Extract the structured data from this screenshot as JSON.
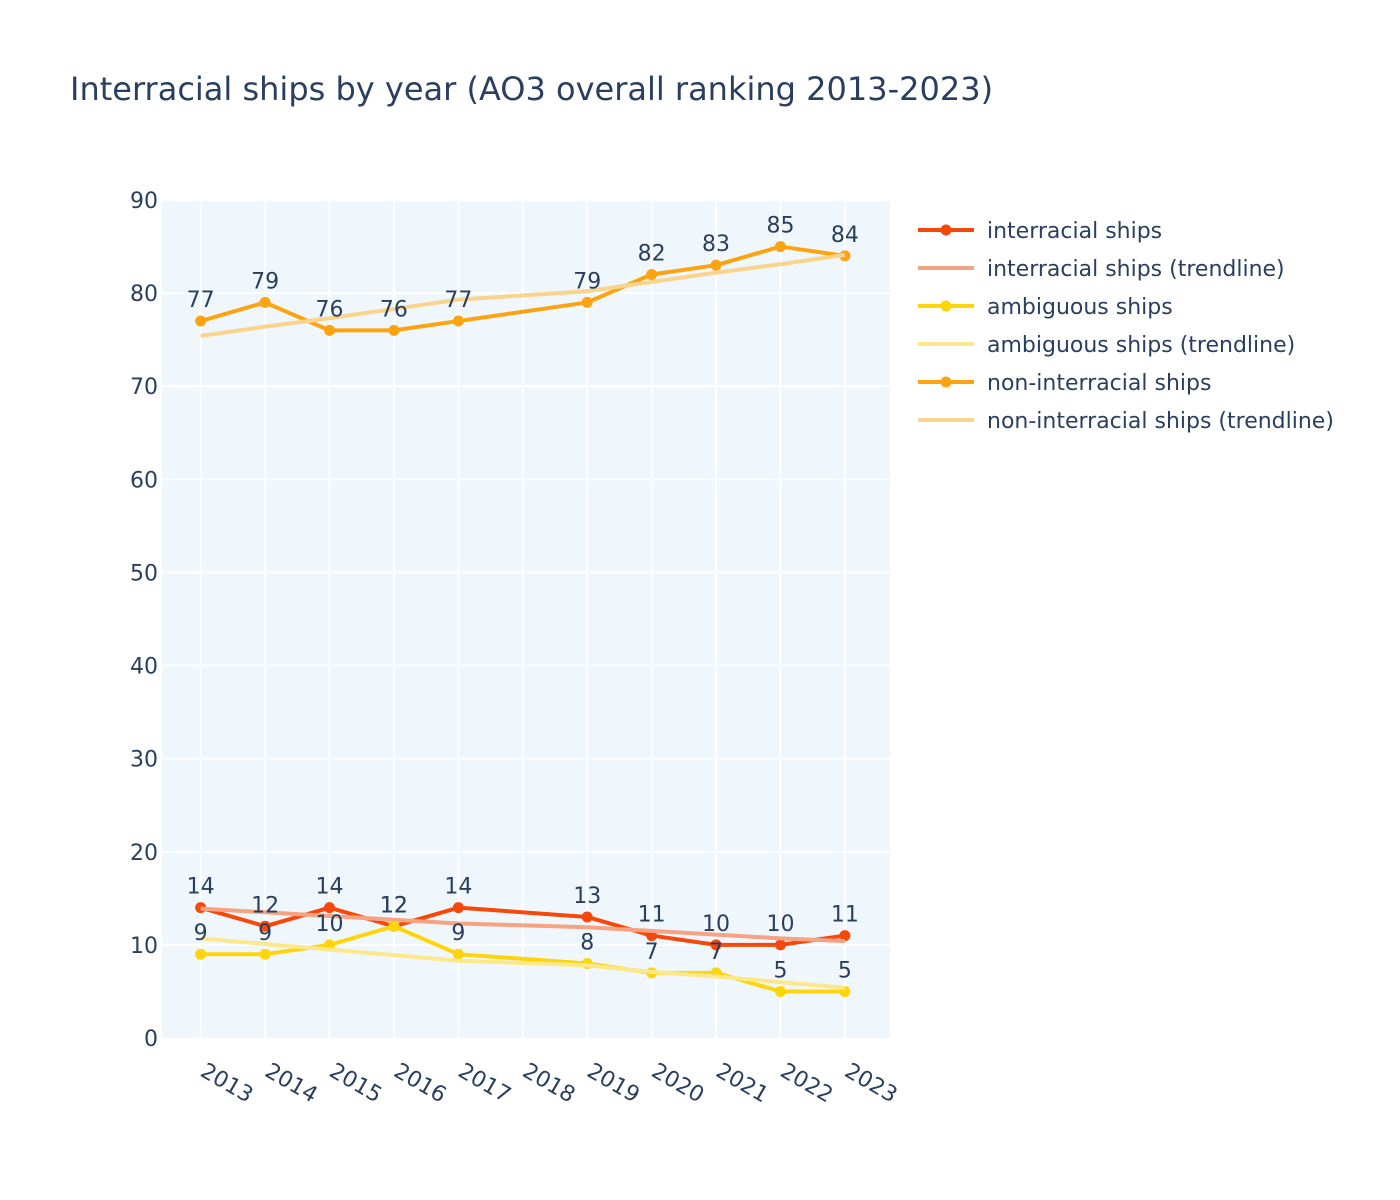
{
  "chart_data": {
    "type": "line",
    "title": "Interracial ships by year (AO3 overall ranking 2013-2023)",
    "x": [
      2013,
      2014,
      2015,
      2016,
      2017,
      2019,
      2020,
      2021,
      2022,
      2023
    ],
    "x_ticks": [
      "2013",
      "2014",
      "2015",
      "2016",
      "2017",
      "2018",
      "2019",
      "2020",
      "2021",
      "2022",
      "2023"
    ],
    "y_ticks": [
      "0",
      "10",
      "20",
      "30",
      "40",
      "50",
      "60",
      "70",
      "80",
      "90"
    ],
    "xlim": [
      2012.4,
      2023.7
    ],
    "ylim": [
      0,
      90
    ],
    "grid": true,
    "legend_position": "right",
    "plot_background": "#eff7fd",
    "series": [
      {
        "name": "interracial ships",
        "color": "#f7480b",
        "mode": "lines+markers+text",
        "values": [
          14,
          12,
          14,
          12,
          14,
          13,
          11,
          10,
          10,
          11
        ],
        "labels": [
          "14",
          "12",
          "14",
          "12",
          "14",
          "13",
          "11",
          "10",
          "10",
          "11"
        ]
      },
      {
        "name": "interracial ships (trendline)",
        "color": "#f6a384",
        "mode": "lines",
        "values": [
          13.9,
          13.5,
          13.1,
          12.7,
          12.3,
          11.9,
          11.5,
          11.1,
          10.7,
          10.4
        ]
      },
      {
        "name": "ambiguous ships",
        "color": "#fdd50a",
        "mode": "lines+markers+text",
        "values": [
          9,
          9,
          10,
          12,
          9,
          8,
          7,
          7,
          5,
          5
        ],
        "labels": [
          "9",
          "9",
          "10",
          "12",
          "9",
          "8",
          "7",
          "7",
          "5",
          "5"
        ]
      },
      {
        "name": "ambiguous ships (trendline)",
        "color": "#fce88b",
        "mode": "lines",
        "values": [
          10.7,
          10.1,
          9.5,
          8.9,
          8.3,
          7.8,
          7.1,
          6.6,
          6.0,
          5.4
        ]
      },
      {
        "name": "non-interracial ships",
        "color": "#fca311",
        "mode": "lines+markers+text",
        "values": [
          77,
          79,
          76,
          76,
          77,
          79,
          82,
          83,
          85,
          84
        ],
        "labels": [
          "77",
          "79",
          "76",
          "76",
          "77",
          "79",
          "82",
          "83",
          "85",
          "84"
        ]
      },
      {
        "name": "non-interracial ships (trendline)",
        "color": "#f9d48c",
        "mode": "lines",
        "values": [
          75.4,
          76.4,
          77.3,
          78.3,
          79.3,
          80.2,
          81.2,
          82.2,
          83.1,
          84.1
        ]
      }
    ]
  }
}
